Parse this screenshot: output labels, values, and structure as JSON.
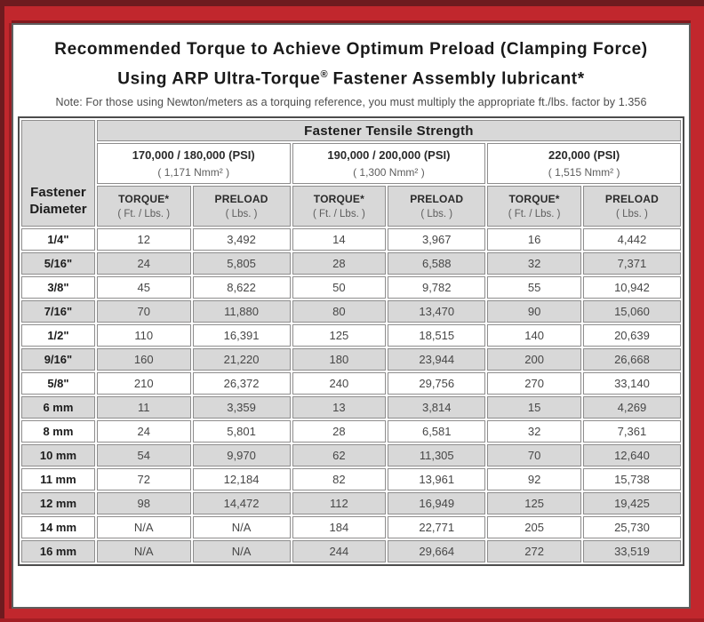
{
  "colors": {
    "frame_red": "#c1272d",
    "frame_maroon": "#6e1b1f",
    "cell_gray": "#d8d8d8"
  },
  "header": {
    "title_line1": "Recommended Torque to Achieve Optimum Preload (Clamping Force)",
    "title_line2_pre": "Using ARP Ultra-Torque",
    "title_line2_sup": "®",
    "title_line2_post": " Fastener Assembly lubricant*",
    "note": "Note: For those using Newton/meters as a torquing reference, you must multiply the appropriate ft./lbs. factor by 1.356"
  },
  "table": {
    "corner_line1": "Fastener",
    "corner_line2": "Diameter",
    "group_header": "Fastener Tensile Strength",
    "strength_columns": [
      {
        "psi": "170,000 / 180,000 (PSI)",
        "nmm": "( 1,171 Nmm² )"
      },
      {
        "psi": "190,000 / 200,000 (PSI)",
        "nmm": "( 1,300 Nmm² )"
      },
      {
        "psi": "220,000 (PSI)",
        "nmm": "( 1,515 Nmm² )"
      }
    ],
    "col_headers": {
      "torque_label": "TORQUE*",
      "torque_sub": "( Ft. / Lbs. )",
      "preload_label": "PRELOAD",
      "preload_sub": "( Lbs. )"
    },
    "rows": [
      {
        "diameter": "1/4\"",
        "values": [
          "12",
          "3,492",
          "14",
          "3,967",
          "16",
          "4,442"
        ]
      },
      {
        "diameter": "5/16\"",
        "values": [
          "24",
          "5,805",
          "28",
          "6,588",
          "32",
          "7,371"
        ]
      },
      {
        "diameter": "3/8\"",
        "values": [
          "45",
          "8,622",
          "50",
          "9,782",
          "55",
          "10,942"
        ]
      },
      {
        "diameter": "7/16\"",
        "values": [
          "70",
          "11,880",
          "80",
          "13,470",
          "90",
          "15,060"
        ]
      },
      {
        "diameter": "1/2\"",
        "values": [
          "110",
          "16,391",
          "125",
          "18,515",
          "140",
          "20,639"
        ]
      },
      {
        "diameter": "9/16\"",
        "values": [
          "160",
          "21,220",
          "180",
          "23,944",
          "200",
          "26,668"
        ]
      },
      {
        "diameter": "5/8\"",
        "values": [
          "210",
          "26,372",
          "240",
          "29,756",
          "270",
          "33,140"
        ]
      },
      {
        "diameter": "6 mm",
        "values": [
          "11",
          "3,359",
          "13",
          "3,814",
          "15",
          "4,269"
        ]
      },
      {
        "diameter": "8 mm",
        "values": [
          "24",
          "5,801",
          "28",
          "6,581",
          "32",
          "7,361"
        ]
      },
      {
        "diameter": "10 mm",
        "values": [
          "54",
          "9,970",
          "62",
          "11,305",
          "70",
          "12,640"
        ]
      },
      {
        "diameter": "11 mm",
        "values": [
          "72",
          "12,184",
          "82",
          "13,961",
          "92",
          "15,738"
        ]
      },
      {
        "diameter": "12 mm",
        "values": [
          "98",
          "14,472",
          "112",
          "16,949",
          "125",
          "19,425"
        ]
      },
      {
        "diameter": "14 mm",
        "values": [
          "N/A",
          "N/A",
          "184",
          "22,771",
          "205",
          "25,730"
        ]
      },
      {
        "diameter": "16 mm",
        "values": [
          "N/A",
          "N/A",
          "244",
          "29,664",
          "272",
          "33,519"
        ]
      }
    ]
  }
}
